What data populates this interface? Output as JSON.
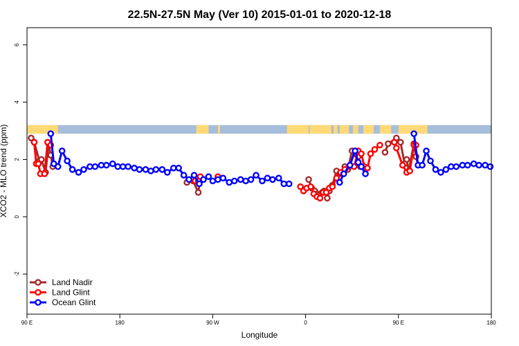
{
  "chart_data": {
    "type": "line",
    "title": "22.5N-27.5N May (Ver 10)   2015-01-01 to 2020-12-18",
    "xlabel": "Longitude",
    "ylabel": "XCO2 - MLO trend (ppm)",
    "x_scale": "longitude from 90 E eastward through the dateline to 180 E",
    "xlim": [
      90,
      540
    ],
    "ylim": [
      -3.4,
      6.6
    ],
    "x_ticks": [
      {
        "value": 90,
        "label": "90 E"
      },
      {
        "value": 180,
        "label": "180"
      },
      {
        "value": 270,
        "label": "90 W"
      },
      {
        "value": 360,
        "label": "0"
      },
      {
        "value": 450,
        "label": "90 E"
      },
      {
        "value": 540,
        "label": "180"
      }
    ],
    "y_ticks": [
      {
        "value": -2,
        "label": "-2"
      },
      {
        "value": 0,
        "label": "0"
      },
      {
        "value": 2,
        "label": "2"
      },
      {
        "value": 4,
        "label": "4"
      },
      {
        "value": 6,
        "label": "6"
      }
    ],
    "grid": false,
    "legend_position": "bottom-left",
    "land_band": {
      "y_range": [
        2.9,
        3.2
      ],
      "ocean_color": "#a6bddb",
      "land_color": "#fed976",
      "land_x_ranges": [
        [
          90,
          120
        ],
        [
          254,
          266
        ],
        [
          275,
          277
        ],
        [
          342,
          363
        ],
        [
          364,
          385
        ],
        [
          387,
          391
        ],
        [
          393,
          402
        ],
        [
          406,
          411
        ],
        [
          416,
          424
        ],
        [
          424,
          426
        ],
        [
          432,
          443
        ],
        [
          450,
          478
        ]
      ]
    },
    "series": [
      {
        "name": "Land Nadir",
        "color": "#a52a2a",
        "points": [
          [
            94,
            2.75
          ],
          [
            97,
            2.6
          ],
          [
            102,
            1.95
          ],
          [
            104,
            2.0
          ],
          [
            108,
            1.55
          ],
          [
            111,
            2.55
          ],
          [
            113,
            2.15
          ],
          [
            115,
            1.75
          ],
          [
            245,
            1.2
          ],
          [
            251,
            1.25
          ],
          [
            256,
            0.85
          ],
          [
            258,
            1.35
          ],
          [
            363,
            1.3
          ],
          [
            366,
            1.0
          ],
          [
            369,
            0.9
          ],
          [
            371,
            0.8
          ],
          [
            373,
            0.75
          ],
          [
            376,
            0.85
          ],
          [
            378,
            0.9
          ],
          [
            381,
            0.65
          ],
          [
            383,
            0.9
          ],
          [
            386,
            1.1
          ],
          [
            390,
            1.6
          ],
          [
            393,
            1.5
          ],
          [
            398,
            1.75
          ],
          [
            401,
            1.65
          ],
          [
            405,
            2.3
          ],
          [
            408,
            2.2
          ],
          [
            411,
            2.1
          ],
          [
            413,
            1.75
          ],
          [
            437,
            2.25
          ],
          [
            440,
            2.55
          ],
          [
            448,
            2.75
          ],
          [
            452,
            2.6
          ],
          [
            456,
            1.85
          ],
          [
            458,
            2.0
          ],
          [
            460,
            1.6
          ],
          [
            465,
            2.55
          ],
          [
            467,
            2.1
          ],
          [
            469,
            1.8
          ]
        ]
      },
      {
        "name": "Land Glint",
        "color": "#ff0000",
        "points": [
          [
            97,
            2.6
          ],
          [
            99,
            1.85
          ],
          [
            101,
            1.85
          ],
          [
            103,
            1.5
          ],
          [
            107,
            1.5
          ],
          [
            110,
            2.6
          ],
          [
            113,
            2.5
          ],
          [
            250,
            1.3
          ],
          [
            253,
            1.25
          ],
          [
            256,
            1.25
          ],
          [
            258,
            1.4
          ],
          [
            275,
            1.4
          ],
          [
            355,
            1.05
          ],
          [
            358,
            0.9
          ],
          [
            361,
            1.0
          ],
          [
            365,
            1.05
          ],
          [
            368,
            0.8
          ],
          [
            371,
            0.7
          ],
          [
            374,
            0.65
          ],
          [
            377,
            0.85
          ],
          [
            380,
            0.85
          ],
          [
            383,
            1.0
          ],
          [
            386,
            1.05
          ],
          [
            390,
            1.35
          ],
          [
            394,
            1.55
          ],
          [
            398,
            1.65
          ],
          [
            402,
            1.75
          ],
          [
            407,
            1.75
          ],
          [
            411,
            2.3
          ],
          [
            414,
            2.2
          ],
          [
            417,
            1.75
          ],
          [
            420,
            1.7
          ],
          [
            423,
            2.2
          ],
          [
            427,
            2.35
          ],
          [
            432,
            2.5
          ],
          [
            446,
            2.6
          ],
          [
            448,
            2.4
          ],
          [
            454,
            1.8
          ],
          [
            458,
            1.55
          ],
          [
            461,
            1.6
          ],
          [
            465,
            2.5
          ],
          [
            467,
            2.5
          ]
        ]
      },
      {
        "name": "Ocean Glint",
        "color": "#0000ff",
        "points": [
          [
            113,
            2.9
          ],
          [
            116,
            1.85
          ],
          [
            120,
            1.75
          ],
          [
            124,
            2.3
          ],
          [
            129,
            1.95
          ],
          [
            134,
            1.65
          ],
          [
            140,
            1.55
          ],
          [
            145,
            1.65
          ],
          [
            151,
            1.75
          ],
          [
            156,
            1.75
          ],
          [
            162,
            1.8
          ],
          [
            167,
            1.8
          ],
          [
            173,
            1.85
          ],
          [
            178,
            1.75
          ],
          [
            183,
            1.75
          ],
          [
            188,
            1.75
          ],
          [
            194,
            1.7
          ],
          [
            199,
            1.65
          ],
          [
            205,
            1.65
          ],
          [
            210,
            1.6
          ],
          [
            215,
            1.65
          ],
          [
            221,
            1.65
          ],
          [
            226,
            1.55
          ],
          [
            232,
            1.7
          ],
          [
            237,
            1.7
          ],
          [
            242,
            1.45
          ],
          [
            247,
            1.3
          ],
          [
            252,
            1.45
          ],
          [
            257,
            1.15
          ],
          [
            261,
            1.3
          ],
          [
            266,
            1.4
          ],
          [
            270,
            1.25
          ],
          [
            275,
            1.3
          ],
          [
            280,
            1.35
          ],
          [
            286,
            1.2
          ],
          [
            291,
            1.25
          ],
          [
            297,
            1.3
          ],
          [
            302,
            1.25
          ],
          [
            307,
            1.3
          ],
          [
            312,
            1.45
          ],
          [
            318,
            1.25
          ],
          [
            323,
            1.35
          ],
          [
            328,
            1.3
          ],
          [
            334,
            1.35
          ],
          [
            339,
            1.15
          ],
          [
            344,
            1.15
          ],
          [
            393,
            1.2
          ],
          [
            397,
            1.5
          ],
          [
            403,
            1.8
          ],
          [
            408,
            2.3
          ],
          [
            411,
            1.9
          ],
          [
            414,
            1.75
          ],
          [
            418,
            1.5
          ],
          [
            465,
            2.9
          ],
          [
            469,
            1.8
          ],
          [
            473,
            1.8
          ],
          [
            477,
            2.3
          ],
          [
            481,
            1.95
          ],
          [
            486,
            1.65
          ],
          [
            491,
            1.55
          ],
          [
            496,
            1.65
          ],
          [
            501,
            1.75
          ],
          [
            506,
            1.75
          ],
          [
            512,
            1.8
          ],
          [
            517,
            1.8
          ],
          [
            523,
            1.85
          ],
          [
            528,
            1.8
          ],
          [
            534,
            1.8
          ],
          [
            539,
            1.75
          ]
        ]
      }
    ]
  }
}
